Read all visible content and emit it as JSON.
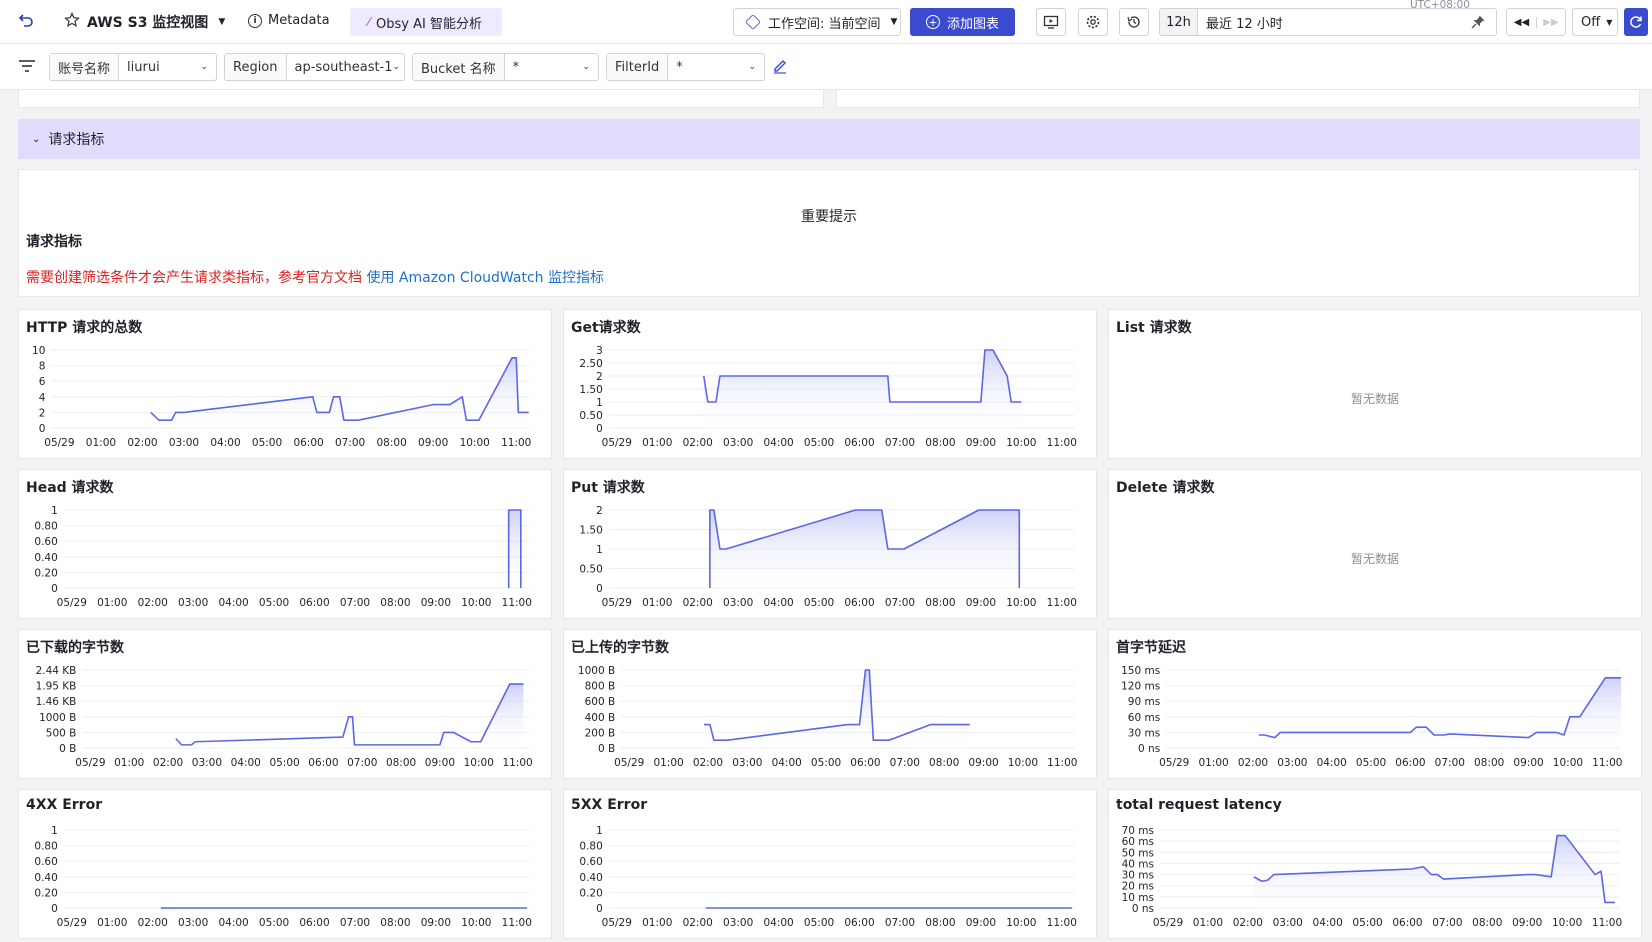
{
  "topbar": {
    "title": "AWS S3 监控视图",
    "metadata_label": "Metadata",
    "ai_label": "Obsy AI 智能分析",
    "workspace_label": "工作空间: 当前空间",
    "add_chart_label": "添加图表",
    "timezone": "UTC+08:00",
    "time_short": "12h",
    "time_range": "最近 12 小时",
    "refresh_label": "Off"
  },
  "filters": [
    {
      "label": "账号名称",
      "value": "liurui"
    },
    {
      "label": "Region",
      "value": "ap-southeast-1"
    },
    {
      "label": "Bucket 名称",
      "value": "*"
    },
    {
      "label": "FilterId",
      "value": "*"
    }
  ],
  "section": {
    "title": "请求指标"
  },
  "notice": {
    "title": "重要提示",
    "heading": "请求指标",
    "warning": "需要创建筛选条件才会产生请求类指标，参考官方文档",
    "link": "使用 Amazon CloudWatch 监控指标"
  },
  "colors": {
    "line": "#5b67e6",
    "fill_top": "#c9cdf8",
    "accent": "#3b4bd0",
    "section_bg": "#e0dcfb"
  },
  "panels": [
    {
      "title": "HTTP 请求的总数",
      "chart_data": {
        "type": "area",
        "x_ticks": [
          "05/29",
          "01:00",
          "02:00",
          "03:00",
          "04:00",
          "05:00",
          "06:00",
          "07:00",
          "08:00",
          "09:00",
          "10:00",
          "11:00"
        ],
        "y_ticks": [
          "10",
          "8",
          "6",
          "4",
          "2",
          "0"
        ],
        "ylim": [
          0,
          10
        ],
        "points": [
          [
            2.2,
            2
          ],
          [
            2.4,
            1
          ],
          [
            2.7,
            1
          ],
          [
            2.8,
            2
          ],
          [
            3.0,
            2
          ],
          [
            6.1,
            4
          ],
          [
            6.2,
            2
          ],
          [
            6.5,
            2
          ],
          [
            6.6,
            4
          ],
          [
            6.75,
            4
          ],
          [
            6.85,
            1
          ],
          [
            7.2,
            1
          ],
          [
            9.0,
            3
          ],
          [
            9.4,
            3
          ],
          [
            9.7,
            4
          ],
          [
            9.8,
            1
          ],
          [
            10.1,
            1
          ],
          [
            10.9,
            9
          ],
          [
            11.0,
            9
          ],
          [
            11.05,
            2
          ],
          [
            11.3,
            2
          ]
        ]
      }
    },
    {
      "title": "Get请求数",
      "chart_data": {
        "type": "area",
        "x_ticks": [
          "05/29",
          "01:00",
          "02:00",
          "03:00",
          "04:00",
          "05:00",
          "06:00",
          "07:00",
          "08:00",
          "09:00",
          "10:00",
          "11:00"
        ],
        "y_ticks": [
          "3",
          "2.50",
          "2",
          "1.50",
          "1",
          "0.50",
          "0"
        ],
        "ylim": [
          0,
          3
        ],
        "points": [
          [
            2.15,
            2
          ],
          [
            2.25,
            1
          ],
          [
            2.45,
            1
          ],
          [
            2.55,
            2
          ],
          [
            6.7,
            2
          ],
          [
            6.75,
            1
          ],
          [
            9.0,
            1
          ],
          [
            9.1,
            3
          ],
          [
            9.3,
            3
          ],
          [
            9.65,
            2
          ],
          [
            9.75,
            1
          ],
          [
            10.0,
            1
          ]
        ]
      }
    },
    {
      "title": "List 请求数",
      "nodata": "暂无数据"
    },
    {
      "title": "Head 请求数",
      "chart_data": {
        "type": "area",
        "x_ticks": [
          "05/29",
          "01:00",
          "02:00",
          "03:00",
          "04:00",
          "05:00",
          "06:00",
          "07:00",
          "08:00",
          "09:00",
          "10:00",
          "11:00"
        ],
        "y_ticks": [
          "1",
          "0.80",
          "0.60",
          "0.40",
          "0.20",
          "0"
        ],
        "ylim": [
          0,
          1
        ],
        "points": [
          [
            10.8,
            1
          ],
          [
            11.1,
            1
          ]
        ],
        "drop_edges": true
      }
    },
    {
      "title": "Put 请求数",
      "chart_data": {
        "type": "area",
        "x_ticks": [
          "05/29",
          "01:00",
          "02:00",
          "03:00",
          "04:00",
          "05:00",
          "06:00",
          "07:00",
          "08:00",
          "09:00",
          "10:00",
          "11:00"
        ],
        "y_ticks": [
          "2",
          "1.50",
          "1",
          "0.50",
          "0"
        ],
        "ylim": [
          0,
          2
        ],
        "points": [
          [
            2.3,
            2
          ],
          [
            2.4,
            2
          ],
          [
            2.55,
            1
          ],
          [
            2.7,
            1
          ],
          [
            5.9,
            2
          ],
          [
            6.55,
            2
          ],
          [
            6.7,
            1
          ],
          [
            7.1,
            1
          ],
          [
            8.95,
            2
          ],
          [
            9.95,
            2
          ]
        ],
        "drop_edges": true
      }
    },
    {
      "title": "Delete 请求数",
      "nodata": "暂无数据"
    },
    {
      "title": "已下载的字节数",
      "chart_data": {
        "type": "area",
        "x_ticks": [
          "05/29",
          "01:00",
          "02:00",
          "03:00",
          "04:00",
          "05:00",
          "06:00",
          "07:00",
          "08:00",
          "09:00",
          "10:00",
          "11:00"
        ],
        "y_ticks": [
          "2.44 KB",
          "1.95 KB",
          "1.46 KB",
          "1000 B",
          "500 B",
          "0 B"
        ],
        "ylim": [
          0,
          2500
        ],
        "points": [
          [
            2.2,
            300
          ],
          [
            2.35,
            100
          ],
          [
            2.6,
            100
          ],
          [
            2.7,
            200
          ],
          [
            6.5,
            350
          ],
          [
            6.65,
            1000
          ],
          [
            6.75,
            1000
          ],
          [
            6.8,
            100
          ],
          [
            9.0,
            100
          ],
          [
            9.1,
            500
          ],
          [
            9.35,
            500
          ],
          [
            9.8,
            200
          ],
          [
            10.05,
            200
          ],
          [
            10.8,
            2050
          ],
          [
            11.15,
            2050
          ]
        ]
      }
    },
    {
      "title": "已上传的字节数",
      "chart_data": {
        "type": "area",
        "x_ticks": [
          "05/29",
          "01:00",
          "02:00",
          "03:00",
          "04:00",
          "05:00",
          "06:00",
          "07:00",
          "08:00",
          "09:00",
          "10:00",
          "11:00"
        ],
        "y_ticks": [
          "1000 B",
          "800 B",
          "600 B",
          "400 B",
          "200 B",
          "0 B"
        ],
        "ylim": [
          0,
          1000
        ],
        "points": [
          [
            1.9,
            300
          ],
          [
            2.05,
            300
          ],
          [
            2.15,
            100
          ],
          [
            2.5,
            100
          ],
          [
            5.55,
            300
          ],
          [
            5.85,
            300
          ],
          [
            6.0,
            1000
          ],
          [
            6.1,
            1000
          ],
          [
            6.2,
            100
          ],
          [
            6.6,
            100
          ],
          [
            7.65,
            300
          ],
          [
            8.65,
            300
          ]
        ]
      }
    },
    {
      "title": "首字节延迟",
      "chart_data": {
        "type": "area",
        "x_ticks": [
          "05/29",
          "01:00",
          "02:00",
          "03:00",
          "04:00",
          "05:00",
          "06:00",
          "07:00",
          "08:00",
          "09:00",
          "10:00",
          "11:00"
        ],
        "y_ticks": [
          "150 ms",
          "120 ms",
          "90 ms",
          "60 ms",
          "30 ms",
          "0 ns"
        ],
        "ylim": [
          0,
          150
        ],
        "points": [
          [
            2.15,
            25
          ],
          [
            2.3,
            25
          ],
          [
            2.55,
            20
          ],
          [
            2.7,
            30
          ],
          [
            6.0,
            30
          ],
          [
            6.15,
            40
          ],
          [
            6.4,
            40
          ],
          [
            6.6,
            25
          ],
          [
            6.85,
            25
          ],
          [
            7.0,
            27
          ],
          [
            9.0,
            20
          ],
          [
            9.2,
            30
          ],
          [
            9.7,
            30
          ],
          [
            9.9,
            25
          ],
          [
            10.05,
            60
          ],
          [
            10.3,
            60
          ],
          [
            10.95,
            135
          ],
          [
            11.35,
            135
          ]
        ]
      }
    },
    {
      "title": "4XX Error",
      "chart_data": {
        "type": "line",
        "x_ticks": [
          "05/29",
          "01:00",
          "02:00",
          "03:00",
          "04:00",
          "05:00",
          "06:00",
          "07:00",
          "08:00",
          "09:00",
          "10:00",
          "11:00"
        ],
        "y_ticks": [
          "1",
          "0.80",
          "0.60",
          "0.40",
          "0.20",
          "0"
        ],
        "ylim": [
          0,
          1
        ],
        "points": [
          [
            2.2,
            0
          ],
          [
            11.25,
            0
          ]
        ]
      }
    },
    {
      "title": "5XX Error",
      "chart_data": {
        "type": "line",
        "x_ticks": [
          "05/29",
          "01:00",
          "02:00",
          "03:00",
          "04:00",
          "05:00",
          "06:00",
          "07:00",
          "08:00",
          "09:00",
          "10:00",
          "11:00"
        ],
        "y_ticks": [
          "1",
          "0.80",
          "0.60",
          "0.40",
          "0.20",
          "0"
        ],
        "ylim": [
          0,
          1
        ],
        "points": [
          [
            2.2,
            0
          ],
          [
            11.25,
            0
          ]
        ]
      }
    },
    {
      "title": "total request latency",
      "chart_data": {
        "type": "area",
        "x_ticks": [
          "05/29",
          "01:00",
          "02:00",
          "03:00",
          "04:00",
          "05:00",
          "06:00",
          "07:00",
          "08:00",
          "09:00",
          "10:00",
          "11:00"
        ],
        "y_ticks": [
          "70 ms",
          "60 ms",
          "50 ms",
          "40 ms",
          "30 ms",
          "20 ms",
          "10 ms",
          "0 ns"
        ],
        "ylim": [
          0,
          70
        ],
        "points": [
          [
            2.15,
            28
          ],
          [
            2.35,
            24
          ],
          [
            2.5,
            25
          ],
          [
            2.65,
            30
          ],
          [
            6.1,
            35
          ],
          [
            6.4,
            37
          ],
          [
            6.6,
            30
          ],
          [
            6.75,
            30
          ],
          [
            6.9,
            26
          ],
          [
            9.0,
            30
          ],
          [
            9.2,
            30
          ],
          [
            9.6,
            28
          ],
          [
            9.75,
            65
          ],
          [
            9.95,
            65
          ],
          [
            10.7,
            30
          ],
          [
            10.85,
            33
          ],
          [
            10.95,
            5
          ],
          [
            11.2,
            5
          ]
        ]
      }
    }
  ]
}
